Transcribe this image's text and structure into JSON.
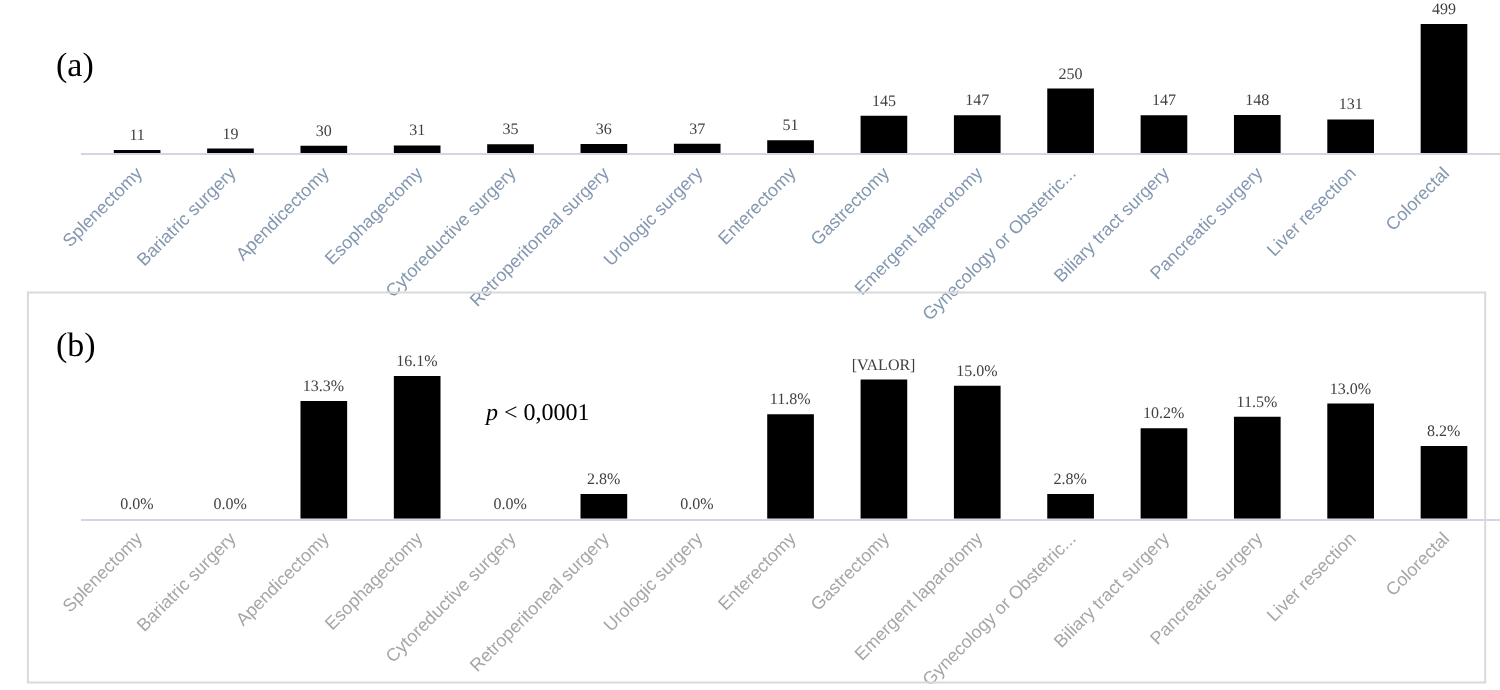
{
  "chart_data": [
    {
      "type": "bar",
      "title": "(a)",
      "categories": [
        "Splenectomy",
        "Bariatric surgery",
        "Apendicectomy",
        "Esophagectomy",
        "Cytoreductive surgery",
        "Retroperitoneal surgery",
        "Urologic surgery",
        "Enterectomy",
        "Gastrectomy",
        "Emergent laparotomy",
        "Gynecology or Obstetric...",
        "Biliary tract surgery",
        "Pancreatic surgery",
        "Liver resection",
        "Colorectal"
      ],
      "values": [
        11,
        19,
        30,
        31,
        35,
        36,
        37,
        51,
        145,
        147,
        250,
        147,
        148,
        131,
        499
      ],
      "color": "#000000",
      "data_labels": true,
      "tick_labels": "x"
    },
    {
      "type": "bar",
      "title": "(b)",
      "categories": [
        "Splenectomy",
        "Bariatric surgery",
        "Apendicectomy",
        "Esophagectomy",
        "Cytoreductive surgery",
        "Retroperitoneal surgery",
        "Urologic surgery",
        "Enterectomy",
        "Gastrectomy",
        "Emergent laparotomy",
        "Gynecology or Obstetric...",
        "Biliary tract surgery",
        "Pancreatic surgery",
        "Liver resection",
        "Colorectal"
      ],
      "values": [
        0.0,
        0.0,
        13.3,
        16.1,
        0.0,
        2.8,
        0.0,
        11.8,
        15.7,
        15.0,
        2.8,
        10.2,
        11.5,
        13.0,
        8.2
      ],
      "value_labels": [
        "0.0%",
        "0.0%",
        "13.3%",
        "16.1%",
        "0.0%",
        "2.8%",
        "0.0%",
        "11.8%",
        "[VALOR]",
        "15.0%",
        "2.8%",
        "10.2%",
        "11.5%",
        "13.0%",
        "8.2%"
      ],
      "color": "#000000",
      "annotations": [
        "p < 0,0001"
      ],
      "tick_labels": "x"
    }
  ]
}
